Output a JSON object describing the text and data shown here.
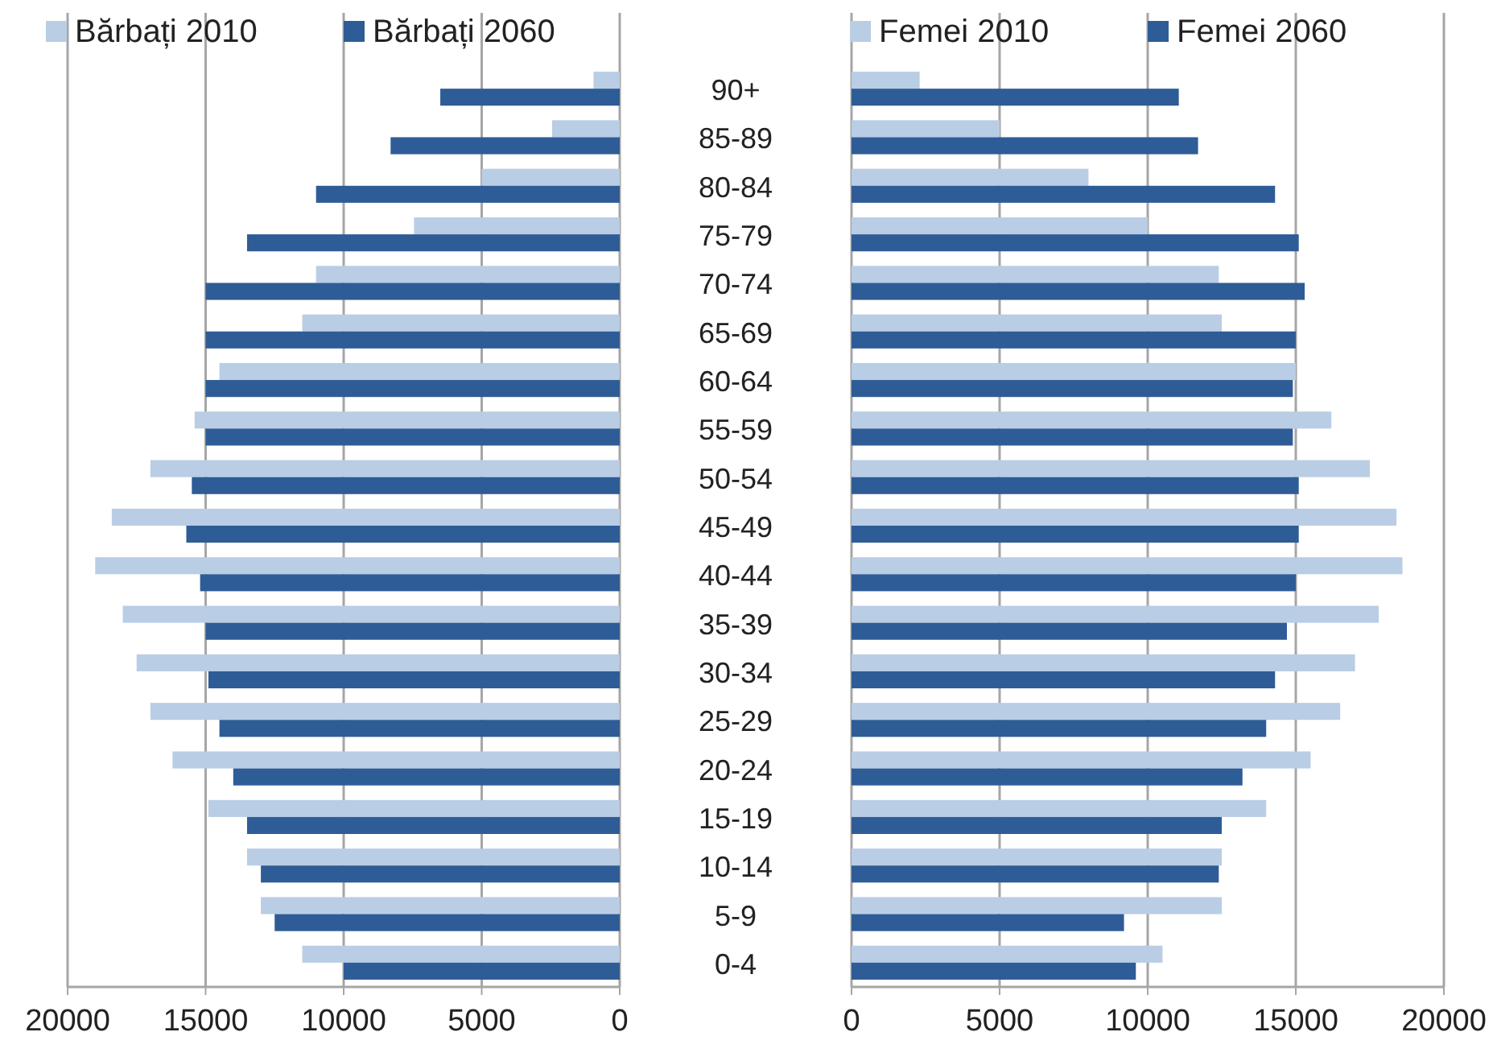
{
  "chart_data": [
    {
      "type": "bar",
      "orientation": "horizontal",
      "categories": [
        "90+",
        "85-89",
        "80-84",
        "75-79",
        "70-74",
        "65-69",
        "60-64",
        "55-59",
        "50-54",
        "45-49",
        "40-44",
        "35-39",
        "30-34",
        "25-29",
        "20-24",
        "15-19",
        "10-14",
        "5-9",
        "0-4"
      ],
      "series": [
        {
          "name": "Bărbați 2010",
          "color": "#b9cde5",
          "values": [
            950,
            2450,
            5000,
            7450,
            11000,
            11500,
            14500,
            15400,
            17000,
            18400,
            19000,
            18000,
            17500,
            17000,
            16200,
            14900,
            13500,
            13000,
            11500
          ]
        },
        {
          "name": "Bărbați 2060",
          "color": "#2e5c96",
          "values": [
            6500,
            8300,
            11000,
            13500,
            15000,
            15000,
            15000,
            15000,
            15500,
            15700,
            15200,
            15000,
            14900,
            14500,
            14000,
            13500,
            13000,
            12500,
            10000
          ]
        }
      ],
      "xlim": [
        20000,
        0
      ],
      "xticks": [
        20000,
        15000,
        10000,
        5000,
        0
      ],
      "grid": "x",
      "legend": "top"
    },
    {
      "type": "bar",
      "orientation": "horizontal",
      "categories": [
        "90+",
        "85-89",
        "80-84",
        "75-79",
        "70-74",
        "65-69",
        "60-64",
        "55-59",
        "50-54",
        "45-49",
        "40-44",
        "35-39",
        "30-34",
        "25-29",
        "20-24",
        "15-19",
        "10-14",
        "5-9",
        "0-4"
      ],
      "series": [
        {
          "name": "Femei 2010",
          "color": "#b9cde5",
          "values": [
            2300,
            5000,
            8000,
            10000,
            12400,
            12500,
            15000,
            16200,
            17500,
            18400,
            18600,
            17800,
            17000,
            16500,
            15500,
            14000,
            12500,
            12500,
            10500
          ]
        },
        {
          "name": "Femei 2060",
          "color": "#2e5c96",
          "values": [
            11050,
            11700,
            14300,
            15100,
            15300,
            15000,
            14900,
            14900,
            15100,
            15100,
            15000,
            14700,
            14300,
            14000,
            13200,
            12500,
            12400,
            9200,
            9600
          ]
        }
      ],
      "xlim": [
        0,
        20000
      ],
      "xticks": [
        0,
        5000,
        10000,
        15000,
        20000
      ],
      "grid": "x",
      "legend": "top",
      "tick_labels": "x"
    }
  ]
}
